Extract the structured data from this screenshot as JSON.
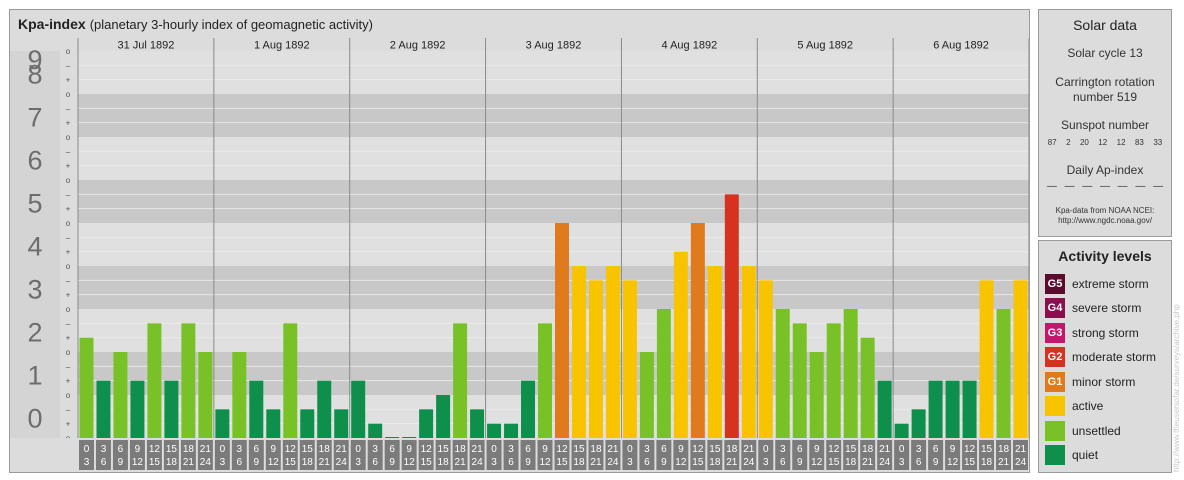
{
  "header": {
    "title": "Kpa-index",
    "subtitle": "(planetary 3-hourly index of geomagnetic activity)"
  },
  "chart_data": {
    "type": "bar",
    "ylim": [
      0,
      9
    ],
    "y_ticks": [
      "0",
      "1",
      "2",
      "3",
      "4",
      "5",
      "6",
      "7",
      "8",
      "9"
    ],
    "sub_ticks": [
      "o",
      "+",
      "–",
      "o",
      "+",
      "–",
      "o",
      "+",
      "–",
      "o",
      "+",
      "–",
      "o",
      "+",
      "–",
      "o",
      "+",
      "–",
      "o",
      "+",
      "–",
      "o",
      "+",
      "–",
      "o",
      "+",
      "–",
      "o"
    ],
    "days": [
      "31 Jul 1892",
      "1 Aug 1892",
      "2 Aug 1892",
      "3 Aug 1892",
      "4 Aug 1892",
      "5 Aug 1892",
      "6 Aug 1892"
    ],
    "interval_start": [
      "0",
      "3",
      "6",
      "9",
      "12",
      "15",
      "18",
      "21"
    ],
    "interval_end": [
      "3",
      "6",
      "9",
      "12",
      "15",
      "18",
      "21",
      "24"
    ],
    "values": [
      [
        2.333,
        1.333,
        2.0,
        1.333,
        2.667,
        1.333,
        2.667,
        2.0
      ],
      [
        0.667,
        2.0,
        1.333,
        0.667,
        2.667,
        0.667,
        1.333,
        0.667
      ],
      [
        1.333,
        0.333,
        0.0,
        0.0,
        0.667,
        1.0,
        2.667,
        0.667
      ],
      [
        0.333,
        0.333,
        1.333,
        2.667,
        5.0,
        4.0,
        3.667,
        4.0
      ],
      [
        3.667,
        2.0,
        3.0,
        4.333,
        5.0,
        4.0,
        5.667,
        4.0
      ],
      [
        3.667,
        3.0,
        2.667,
        2.0,
        2.667,
        3.0,
        2.333,
        1.333
      ],
      [
        0.333,
        0.667,
        1.333,
        1.333,
        1.333,
        3.667,
        3.0,
        3.667
      ]
    ],
    "colors": {
      "quiet": "#0e8f4c",
      "unsettled": "#78c227",
      "active": "#f8c400",
      "G1": "#e07a1a",
      "G2": "#d63220",
      "G3": "#c4176b",
      "G4": "#8b0e4e",
      "G5": "#5c0a2e"
    }
  },
  "solar": {
    "title": "Solar data",
    "cycle": "Solar cycle 13",
    "carrington_line1": "Carrington rotation",
    "carrington_line2": "number 519",
    "sunspot_label": "Sunspot number",
    "sunspots": [
      "87",
      "2",
      "20",
      "12",
      "12",
      "83",
      "33"
    ],
    "ap_label": "Daily Ap-index",
    "ap_values": [
      "—",
      "—",
      "—",
      "—",
      "—",
      "—",
      "—"
    ],
    "credit_line1": "Kpa-data from NOAA NCEI:",
    "credit_line2": "http://www.ngdc.noaa.gov/"
  },
  "activity": {
    "title": "Activity levels",
    "levels": [
      {
        "badge": "G5",
        "label": "extreme storm",
        "color": "#5c0a2e"
      },
      {
        "badge": "G4",
        "label": "severe storm",
        "color": "#8b0e4e"
      },
      {
        "badge": "G3",
        "label": "strong storm",
        "color": "#c4176b"
      },
      {
        "badge": "G2",
        "label": "moderate storm",
        "color": "#d63220"
      },
      {
        "badge": "G1",
        "label": "minor storm",
        "color": "#e07a1a"
      },
      {
        "badge": "",
        "label": "active",
        "color": "#f8c400"
      },
      {
        "badge": "",
        "label": "unsettled",
        "color": "#78c227"
      },
      {
        "badge": "",
        "label": "quiet",
        "color": "#0e8f4c"
      }
    ]
  },
  "watermark": "http://www.theusersofar.de/surveys/archive.php"
}
